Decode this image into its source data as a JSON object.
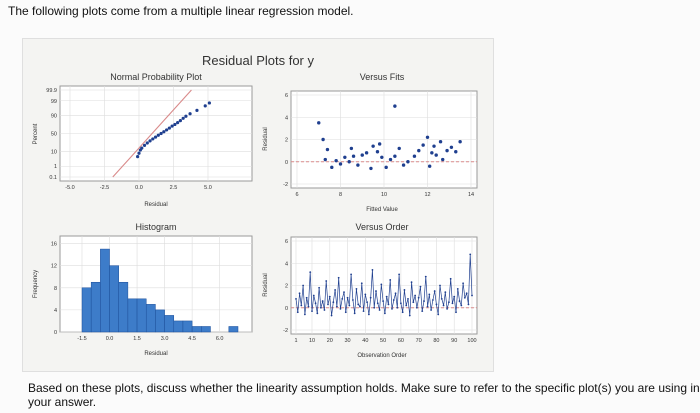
{
  "question": {
    "intro": "The following plots come from a multiple linear regression model.",
    "prompt": "Based on these plots, discuss whether the linearity assumption holds. Make sure to refer to the specific plot(s) you are using in your answer."
  },
  "figure": {
    "title": "Residual Plots for y"
  },
  "colors": {
    "fit_line": "#d98a8a",
    "points": "#1f3f8f",
    "bars": "#3d7cc9",
    "bar_edge": "#1d4f9a",
    "grid": "#dddddd"
  },
  "chart_data": [
    {
      "type": "scatter",
      "title": "Normal Probability Plot",
      "xlabel": "Residual",
      "ylabel": "Percent",
      "xlim": [
        -5.0,
        5.0
      ],
      "x_ticks": [
        "-5.0",
        "-2.5",
        "0.0",
        "2.5",
        "5.0"
      ],
      "y_ticks": [
        {
          "p": 0.1,
          "label": "0.1"
        },
        {
          "p": 1,
          "label": "1"
        },
        {
          "p": 10,
          "label": "10"
        },
        {
          "p": 50,
          "label": "50"
        },
        {
          "p": 90,
          "label": "90"
        },
        {
          "p": 99,
          "label": "99"
        },
        {
          "p": 99.9,
          "label": "99.9"
        }
      ],
      "points": [
        [
          -0.1,
          5
        ],
        [
          0.0,
          8
        ],
        [
          0.1,
          12
        ],
        [
          0.2,
          15
        ],
        [
          0.4,
          20
        ],
        [
          0.6,
          25
        ],
        [
          0.8,
          30
        ],
        [
          1.0,
          35
        ],
        [
          1.2,
          40
        ],
        [
          1.4,
          45
        ],
        [
          1.6,
          50
        ],
        [
          1.8,
          55
        ],
        [
          2.0,
          60
        ],
        [
          2.2,
          65
        ],
        [
          2.4,
          70
        ],
        [
          2.6,
          74
        ],
        [
          2.8,
          78
        ],
        [
          3.0,
          82
        ],
        [
          3.2,
          86
        ],
        [
          3.4,
          89
        ],
        [
          3.7,
          92
        ],
        [
          4.2,
          95
        ],
        [
          4.8,
          97.5
        ],
        [
          5.1,
          98.5
        ]
      ],
      "fit_line": [
        [
          -1.9,
          0.1
        ],
        [
          3.8,
          99.9
        ]
      ]
    },
    {
      "type": "scatter",
      "title": "Versus Fits",
      "xlabel": "Fitted Value",
      "ylabel": "Residual",
      "xlim": [
        6,
        14
      ],
      "ylim": [
        -2,
        6
      ],
      "x_ticks": [
        "6",
        "8",
        "10",
        "12",
        "14"
      ],
      "y_ticks": [
        "-2",
        "0",
        "2",
        "4",
        "6"
      ],
      "reference_y": 0,
      "points": [
        [
          7.0,
          3.5
        ],
        [
          7.2,
          2.0
        ],
        [
          7.3,
          0.2
        ],
        [
          7.4,
          1.1
        ],
        [
          7.6,
          -0.5
        ],
        [
          7.8,
          0.1
        ],
        [
          8.0,
          -0.2
        ],
        [
          8.2,
          0.4
        ],
        [
          8.4,
          0.0
        ],
        [
          8.6,
          0.5
        ],
        [
          8.8,
          -0.3
        ],
        [
          9.0,
          0.6
        ],
        [
          9.2,
          0.8
        ],
        [
          9.4,
          -0.6
        ],
        [
          9.5,
          1.4
        ],
        [
          9.7,
          0.9
        ],
        [
          9.9,
          0.4
        ],
        [
          10.1,
          -0.5
        ],
        [
          10.3,
          0.2
        ],
        [
          10.5,
          0.5
        ],
        [
          10.7,
          1.2
        ],
        [
          10.9,
          -0.3
        ],
        [
          11.1,
          0.0
        ],
        [
          11.4,
          0.5
        ],
        [
          11.6,
          1.0
        ],
        [
          11.8,
          1.5
        ],
        [
          12.0,
          2.2
        ],
        [
          12.1,
          -0.4
        ],
        [
          12.2,
          0.8
        ],
        [
          12.4,
          0.6
        ],
        [
          12.6,
          1.8
        ],
        [
          12.7,
          0.2
        ],
        [
          12.9,
          1.0
        ],
        [
          13.1,
          1.3
        ],
        [
          13.3,
          0.9
        ],
        [
          13.5,
          1.8
        ],
        [
          10.5,
          5.0
        ],
        [
          8.5,
          1.2
        ],
        [
          9.8,
          1.6
        ],
        [
          12.3,
          1.4
        ]
      ]
    },
    {
      "type": "bar",
      "title": "Histogram",
      "xlabel": "Residual",
      "ylabel": "Frequency",
      "x_ticks": [
        "-1.5",
        "0.0",
        "1.5",
        "3.0",
        "4.5",
        "6.0"
      ],
      "y_ticks": [
        "0",
        "4",
        "8",
        "12",
        "16"
      ],
      "ylim": [
        0,
        17
      ],
      "bin_start": -1.5,
      "bin_width": 0.5,
      "values": [
        8,
        9,
        15,
        12,
        9,
        6,
        6,
        5,
        4,
        3,
        2,
        2,
        1,
        1,
        0,
        0,
        1
      ]
    },
    {
      "type": "line",
      "title": "Versus Order",
      "xlabel": "Observation Order",
      "ylabel": "Residual",
      "ylim": [
        -2,
        6
      ],
      "x_ticks": [
        "1",
        "10",
        "20",
        "30",
        "40",
        "50",
        "60",
        "70",
        "80",
        "90",
        "100"
      ],
      "y_ticks": [
        "-2",
        "0",
        "2",
        "4",
        "6"
      ],
      "reference_y": 0,
      "x": [
        1,
        2,
        3,
        4,
        5,
        6,
        7,
        8,
        9,
        10,
        11,
        12,
        13,
        14,
        15,
        16,
        17,
        18,
        19,
        20,
        21,
        22,
        23,
        24,
        25,
        26,
        27,
        28,
        29,
        30,
        31,
        32,
        33,
        34,
        35,
        36,
        37,
        38,
        39,
        40,
        41,
        42,
        43,
        44,
        45,
        46,
        47,
        48,
        49,
        50,
        51,
        52,
        53,
        54,
        55,
        56,
        57,
        58,
        59,
        60,
        61,
        62,
        63,
        64,
        65,
        66,
        67,
        68,
        69,
        70,
        71,
        72,
        73,
        74,
        75,
        76,
        77,
        78,
        79,
        80,
        81,
        82,
        83,
        84,
        85,
        86,
        87,
        88,
        89,
        90,
        91,
        92,
        93,
        94,
        95,
        96,
        97,
        98,
        99,
        100
      ],
      "values": [
        0.8,
        -0.4,
        1.3,
        0.2,
        2.0,
        -0.6,
        0.9,
        0.1,
        3.2,
        -0.3,
        1.1,
        0.4,
        -0.5,
        1.8,
        0.0,
        0.6,
        -0.2,
        2.4,
        0.3,
        1.0,
        -0.7,
        0.5,
        1.6,
        0.1,
        2.7,
        -0.1,
        0.8,
        1.4,
        -0.4,
        0.9,
        0.2,
        3.0,
        0.7,
        -0.5,
        1.7,
        0.3,
        0.1,
        2.2,
        -0.3,
        1.2,
        0.5,
        -0.6,
        0.9,
        3.4,
        0.0,
        1.5,
        0.4,
        -0.2,
        2.1,
        0.6,
        -0.5,
        1.0,
        0.3,
        2.5,
        -0.1,
        0.7,
        1.3,
        0.0,
        3.0,
        0.4,
        -0.4,
        1.6,
        0.2,
        0.8,
        -0.7,
        2.3,
        0.5,
        1.1,
        0.0,
        0.9,
        1.9,
        -0.3,
        0.6,
        2.8,
        0.1,
        1.2,
        -0.2,
        0.7,
        1.5,
        0.3,
        -0.6,
        2.0,
        0.8,
        0.2,
        1.4,
        -0.1,
        0.5,
        2.6,
        0.4,
        1.0,
        -0.4,
        1.7,
        0.6,
        0.2,
        2.2,
        0.9,
        1.3,
        0.3,
        4.8,
        1.1
      ]
    }
  ]
}
